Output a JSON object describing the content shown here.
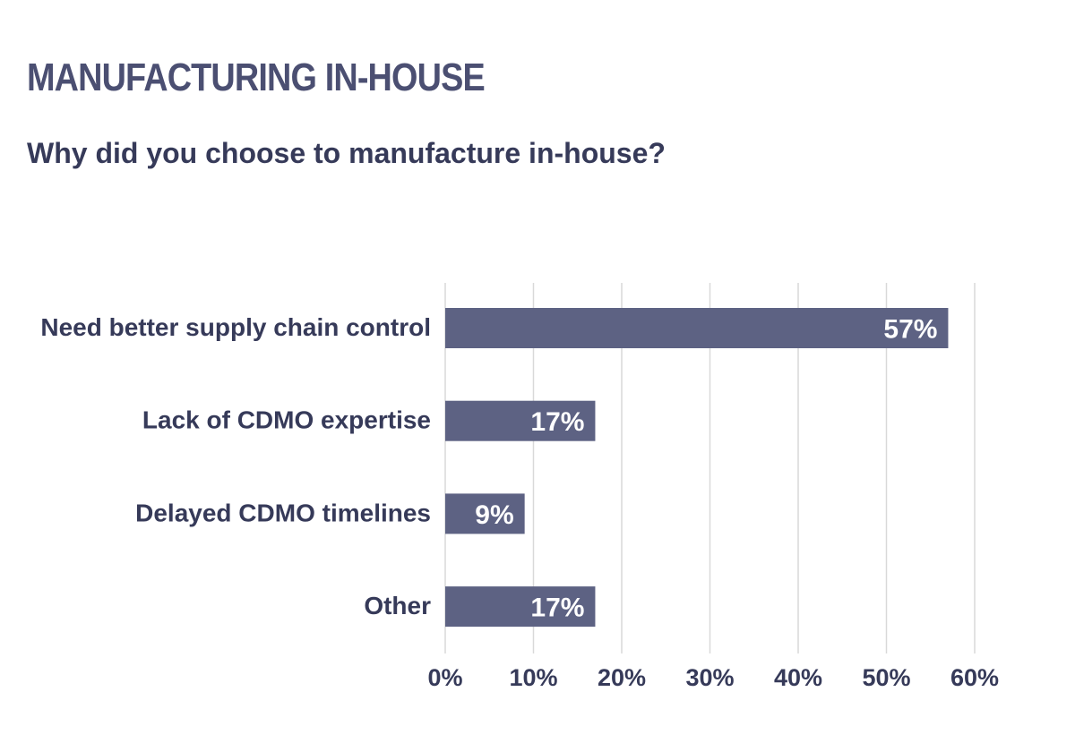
{
  "header": {
    "title": "MANUFACTURING IN-HOUSE",
    "subtitle": "Why did you choose to manufacture in-house?"
  },
  "chart_data": {
    "type": "bar",
    "orientation": "horizontal",
    "categories": [
      "Need better supply chain control",
      "Lack of CDMO expertise",
      "Delayed CDMO timelines",
      "Other"
    ],
    "values": [
      57,
      17,
      9,
      17
    ],
    "value_labels": [
      "57%",
      "17%",
      "9%",
      "17%"
    ],
    "x_ticks": [
      "0%",
      "10%",
      "20%",
      "30%",
      "40%",
      "50%",
      "60%"
    ],
    "xlim": [
      0,
      60
    ],
    "grid": true,
    "legend": "none",
    "bar_color": "#5d6283",
    "grid_color": "#d9d9d9"
  }
}
